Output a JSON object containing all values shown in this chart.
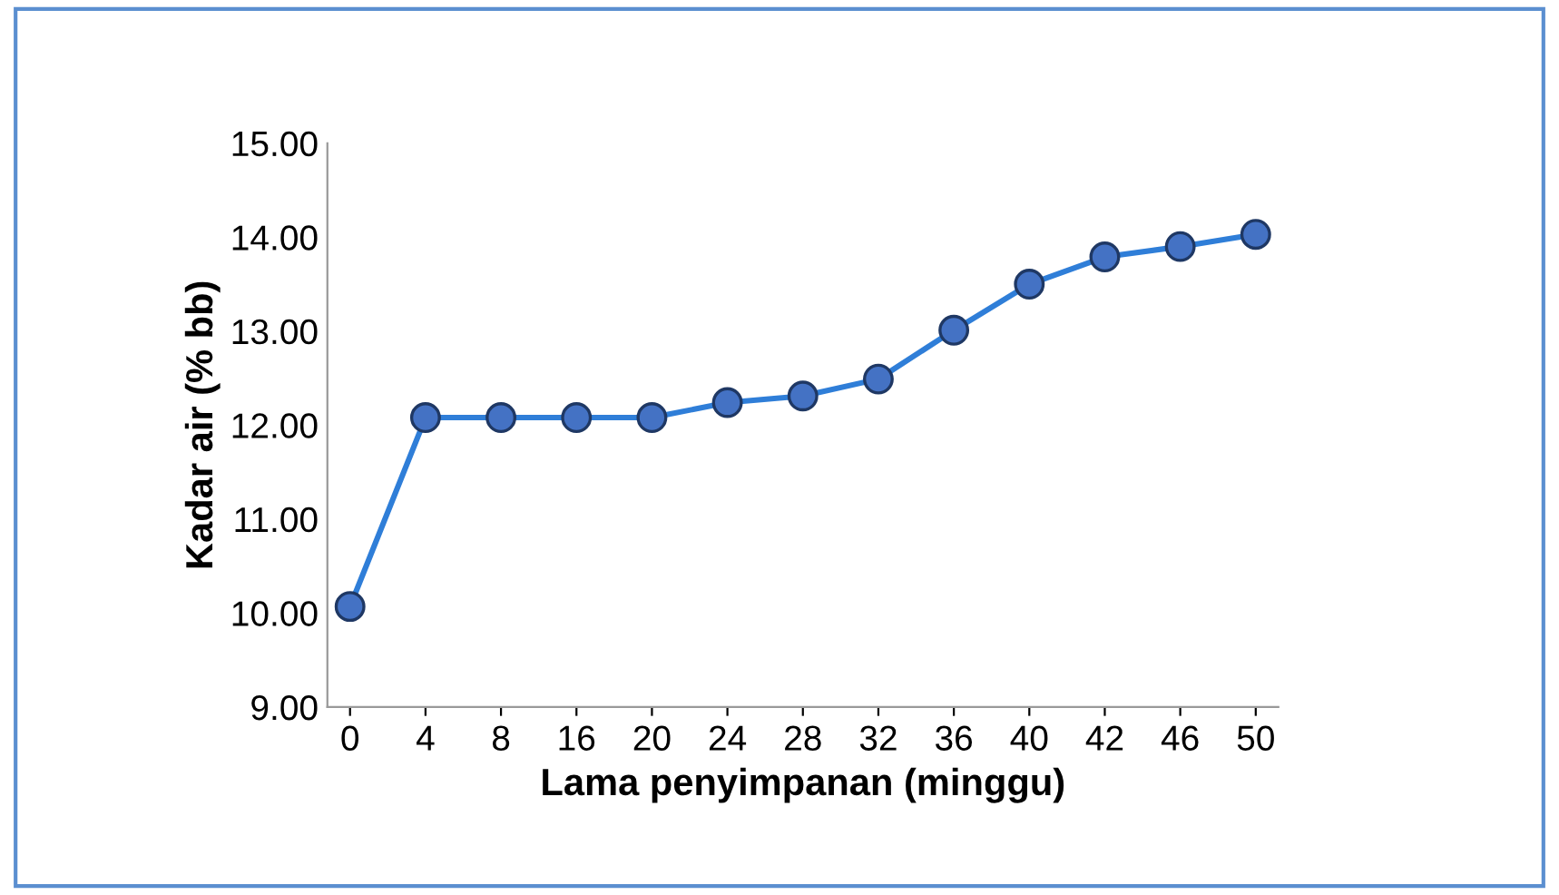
{
  "chart_data": {
    "type": "line",
    "xlabel": "Lama penyimpanan (minggu)",
    "ylabel": "Kadar air (% bb)",
    "categories": [
      "0",
      "4",
      "8",
      "16",
      "20",
      "24",
      "28",
      "32",
      "36",
      "40",
      "42",
      "46",
      "50"
    ],
    "series": [
      {
        "color": "#2f7ed8",
        "values": [
          10.07,
          12.08,
          12.08,
          12.08,
          12.08,
          12.24,
          12.31,
          12.49,
          13.01,
          13.5,
          13.79,
          13.9,
          14.03
        ]
      }
    ],
    "ylim": [
      9,
      15
    ],
    "yticks": [
      {
        "value": 9,
        "label": "9.00"
      },
      {
        "value": 10,
        "label": "10.00"
      },
      {
        "value": 11,
        "label": "11.00"
      },
      {
        "value": 12,
        "label": "12.00"
      },
      {
        "value": 13,
        "label": "13.00"
      },
      {
        "value": 14,
        "label": "14.00"
      },
      {
        "value": 15,
        "label": "15.00"
      }
    ],
    "marker": "circle",
    "line_style": "solid",
    "grid": false,
    "legend": false
  }
}
